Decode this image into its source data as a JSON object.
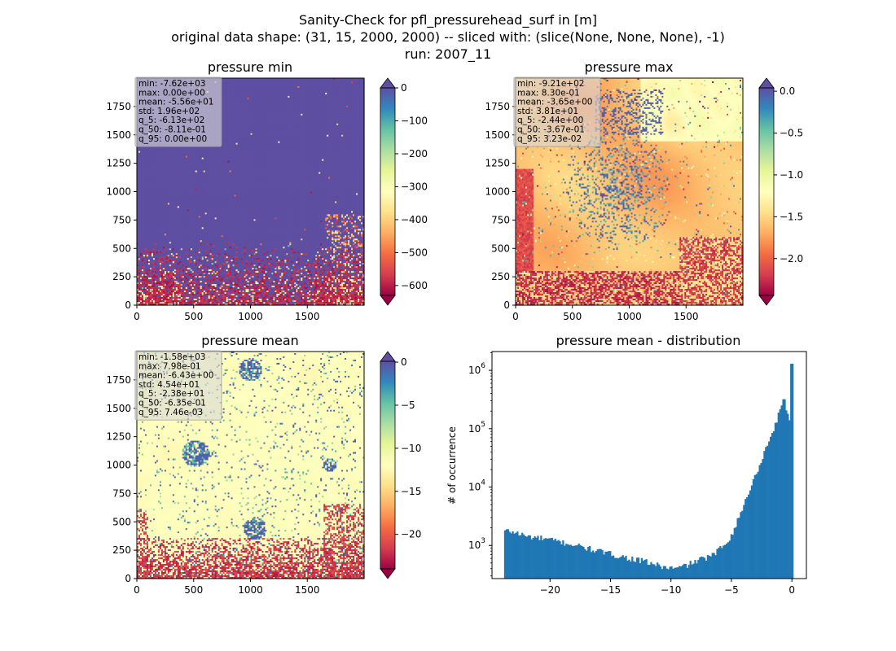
{
  "figure": {
    "title_lines": [
      "Sanity-Check for pfl_pressurehead_surf in [m]",
      "original data shape: (31, 15, 2000, 2000) -- sliced with: (slice(None, None, None), -1)",
      "run: 2007_11"
    ]
  },
  "chart_data": [
    {
      "type": "heatmap",
      "title": "pressure min",
      "xlim": [
        0,
        2000
      ],
      "ylim": [
        0,
        2000
      ],
      "xticks": [
        0,
        500,
        1000,
        1500
      ],
      "yticks": [
        0,
        250,
        500,
        750,
        1000,
        1250,
        1500,
        1750
      ],
      "colormap": "Spectral",
      "colorbar": {
        "min": -630,
        "max": 0,
        "ticks": [
          0,
          -100,
          -200,
          -300,
          -400,
          -500,
          -600
        ],
        "extend": "both"
      },
      "stats": [
        "min: -7.62e+03",
        "max: 0.00e+00",
        "mean: -5.56e+01",
        "std: 1.96e+02",
        "q_5: -6.13e+02",
        "q_50: -8.11e-01",
        "q_95: 0.00e+00"
      ]
    },
    {
      "type": "heatmap",
      "title": "pressure max",
      "xlim": [
        0,
        2000
      ],
      "ylim": [
        0,
        2000
      ],
      "xticks": [
        0,
        500,
        1000,
        1500
      ],
      "yticks": [
        0,
        250,
        500,
        750,
        1000,
        1250,
        1500,
        1750
      ],
      "colormap": "Spectral",
      "colorbar": {
        "min": -2.44,
        "max": 0.04,
        "ticks": [
          0.0,
          -0.5,
          -1.0,
          -1.5,
          -2.0
        ],
        "tick_labels": [
          "0.0",
          "−0.5",
          "−1.0",
          "−1.5",
          "−2.0"
        ],
        "extend": "both"
      },
      "stats": [
        "min: -9.21e+02",
        "max: 8.30e-01",
        "mean: -3.65e+00",
        "std: 3.81e+01",
        "q_5: -2.44e+00",
        "q_50: -3.67e-01",
        "q_95: 3.23e-02"
      ]
    },
    {
      "type": "heatmap",
      "title": "pressure mean",
      "xlim": [
        0,
        2000
      ],
      "ylim": [
        0,
        2000
      ],
      "xticks": [
        0,
        500,
        1000,
        1500
      ],
      "yticks": [
        0,
        250,
        500,
        750,
        1000,
        1250,
        1500,
        1750
      ],
      "colormap": "Spectral",
      "colorbar": {
        "min": -24,
        "max": 0.1,
        "ticks": [
          0,
          -5,
          -10,
          -15,
          -20
        ],
        "extend": "both"
      },
      "stats": [
        "min: -1.58e+03",
        "max: 7.98e-01",
        "mean: -6.43e+00",
        "std: 4.54e+01",
        "q_5: -2.38e+01",
        "q_50: -6.35e-01",
        "q_95: 7.46e-03"
      ]
    },
    {
      "type": "bar",
      "title": "pressure mean - distribution",
      "xlabel": "",
      "ylabel": "# of occurrence",
      "yscale": "log",
      "xlim": [
        -24.8,
        1.2
      ],
      "ylim": [
        270,
        2100000
      ],
      "xticks": [
        -20,
        -15,
        -10,
        -5,
        0
      ],
      "bar_color": "#1f77b4",
      "bin_width": 0.13,
      "anchors": [
        [
          -23.8,
          1800
        ],
        [
          -23.0,
          1700
        ],
        [
          -22.0,
          1450
        ],
        [
          -20.0,
          1250
        ],
        [
          -18.0,
          1020
        ],
        [
          -16.0,
          800
        ],
        [
          -14.0,
          640
        ],
        [
          -12.0,
          520
        ],
        [
          -10.5,
          420
        ],
        [
          -9.5,
          400
        ],
        [
          -8.5,
          480
        ],
        [
          -7.5,
          580
        ],
        [
          -6.5,
          680
        ],
        [
          -5.5,
          1100
        ],
        [
          -5.0,
          1500
        ],
        [
          -4.5,
          2600
        ],
        [
          -4.0,
          4800
        ],
        [
          -3.5,
          9000
        ],
        [
          -3.0,
          16000
        ],
        [
          -2.5,
          30000
        ],
        [
          -2.0,
          55000
        ],
        [
          -1.5,
          100000
        ],
        [
          -1.0,
          200000
        ],
        [
          -0.5,
          250000
        ],
        [
          -0.13,
          120000
        ]
      ],
      "spikes": [
        [
          -0.65,
          320000
        ],
        [
          -0.9,
          250000
        ],
        [
          -0.3,
          180000
        ],
        [
          -0.02,
          1300000
        ]
      ]
    }
  ]
}
